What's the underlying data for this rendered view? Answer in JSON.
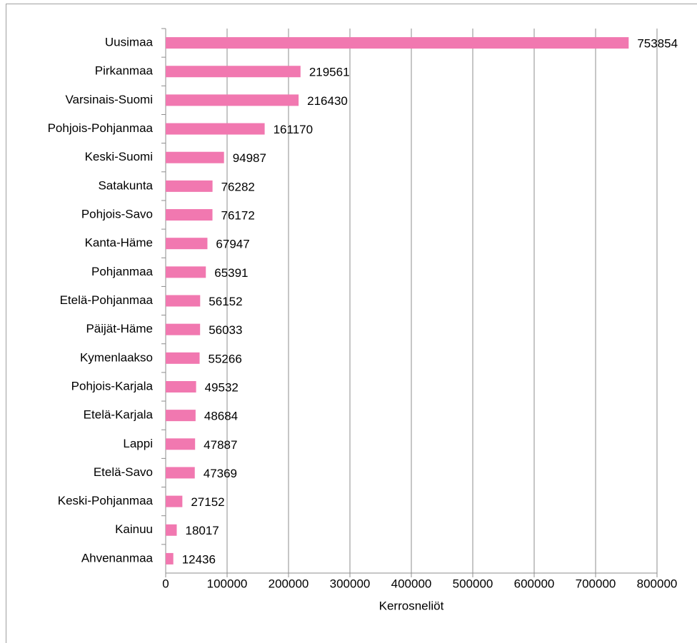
{
  "chart_data": {
    "type": "bar",
    "orientation": "horizontal",
    "x_label": "Kerrosneliöt",
    "categories": [
      "Uusimaa",
      "Pirkanmaa",
      "Varsinais-Suomi",
      "Pohjois-Pohjanmaa",
      "Keski-Suomi",
      "Satakunta",
      "Pohjois-Savo",
      "Kanta-Häme",
      "Pohjanmaa",
      "Etelä-Pohjanmaa",
      "Päijät-Häme",
      "Kymenlaakso",
      "Pohjois-Karjala",
      "Etelä-Karjala",
      "Lappi",
      "Etelä-Savo",
      "Keski-Pohjanmaa",
      "Kainuu",
      "Ahvenanmaa"
    ],
    "values": [
      753854,
      219561,
      216430,
      161170,
      94987,
      76282,
      76172,
      67947,
      65391,
      56152,
      56033,
      55266,
      49532,
      48684,
      47887,
      47369,
      27152,
      18017,
      12436
    ],
    "color": "#f178b0",
    "xlim": [
      0,
      800000
    ],
    "xticks": [
      0,
      100000,
      200000,
      300000,
      400000,
      500000,
      600000,
      700000,
      800000
    ],
    "grid": true
  }
}
